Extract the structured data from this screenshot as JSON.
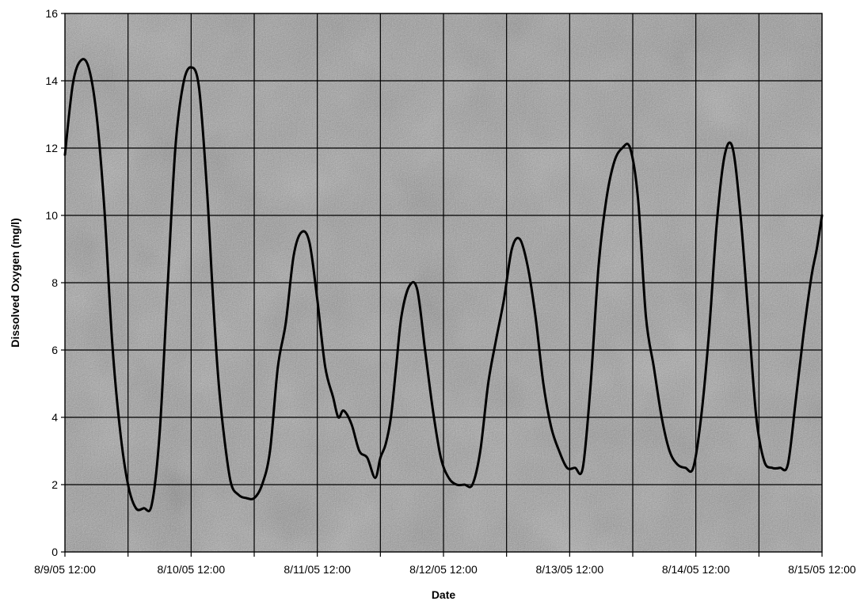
{
  "chart_data": {
    "type": "line",
    "title": "",
    "xlabel": "Date",
    "ylabel": "Dissolved Oxygen (mg/l)",
    "ylim": [
      0,
      16
    ],
    "yticks": [
      0,
      2,
      4,
      6,
      8,
      10,
      12,
      14,
      16
    ],
    "xlim": [
      "2005-08-09 12:00",
      "2005-08-15 12:00"
    ],
    "xtick_labels": [
      "8/9/05 12:00",
      "8/10/05 12:00",
      "8/11/05 12:00",
      "8/12/05 12:00",
      "8/13/05 12:00",
      "8/14/05 12:00",
      "8/15/05 12:00"
    ],
    "grid": true,
    "grid_interval_hours": 12,
    "background": "textured gray",
    "line_color": "#000000",
    "series": [
      {
        "x": [
          "2005-08-09 12:00",
          "2005-08-09 13:30",
          "2005-08-09 15:00",
          "2005-08-09 16:30",
          "2005-08-09 18:00",
          "2005-08-09 19:30",
          "2005-08-09 21:00",
          "2005-08-09 22:30",
          "2005-08-10 00:00",
          "2005-08-10 01:30",
          "2005-08-10 03:00",
          "2005-08-10 04:30",
          "2005-08-10 06:00",
          "2005-08-10 07:30",
          "2005-08-10 09:00",
          "2005-08-10 10:30",
          "2005-08-10 12:00",
          "2005-08-10 13:30",
          "2005-08-10 15:00",
          "2005-08-10 16:00",
          "2005-08-10 17:00",
          "2005-08-10 18:00",
          "2005-08-10 19:30",
          "2005-08-10 21:00",
          "2005-08-10 22:30",
          "2005-08-11 00:00",
          "2005-08-11 01:30",
          "2005-08-11 03:00",
          "2005-08-11 04:30",
          "2005-08-11 06:00",
          "2005-08-11 07:30",
          "2005-08-11 09:00",
          "2005-08-11 10:30",
          "2005-08-11 12:00",
          "2005-08-11 13:30",
          "2005-08-11 15:00",
          "2005-08-11 16:00",
          "2005-08-11 17:00",
          "2005-08-11 18:30",
          "2005-08-11 20:00",
          "2005-08-11 21:30",
          "2005-08-11 23:00",
          "2005-08-12 00:00",
          "2005-08-12 01:00",
          "2005-08-12 02:00",
          "2005-08-12 03:00",
          "2005-08-12 04:00",
          "2005-08-12 05:30",
          "2005-08-12 07:00",
          "2005-08-12 08:30",
          "2005-08-12 10:00",
          "2005-08-12 11:30",
          "2005-08-12 13:00",
          "2005-08-12 14:30",
          "2005-08-12 16:00",
          "2005-08-12 17:30",
          "2005-08-12 19:00",
          "2005-08-12 20:30",
          "2005-08-12 22:00",
          "2005-08-12 23:30",
          "2005-08-13 01:00",
          "2005-08-13 02:30",
          "2005-08-13 04:00",
          "2005-08-13 05:30",
          "2005-08-13 07:00",
          "2005-08-13 08:30",
          "2005-08-13 10:00",
          "2005-08-13 11:30",
          "2005-08-13 13:00",
          "2005-08-13 14:30",
          "2005-08-13 16:00",
          "2005-08-13 17:30",
          "2005-08-13 19:00",
          "2005-08-13 20:30",
          "2005-08-13 22:00",
          "2005-08-13 23:30",
          "2005-08-14 01:00",
          "2005-08-14 02:30",
          "2005-08-14 04:00",
          "2005-08-14 05:30",
          "2005-08-14 07:00",
          "2005-08-14 08:30",
          "2005-08-14 10:00",
          "2005-08-14 11:30",
          "2005-08-14 13:00",
          "2005-08-14 14:30",
          "2005-08-14 16:00",
          "2005-08-14 17:30",
          "2005-08-14 19:00",
          "2005-08-14 20:30",
          "2005-08-14 22:00",
          "2005-08-14 23:30",
          "2005-08-15 01:00",
          "2005-08-15 02:30",
          "2005-08-15 04:00",
          "2005-08-15 05:30",
          "2005-08-15 07:00",
          "2005-08-15 08:30",
          "2005-08-15 10:00",
          "2005-08-15 11:00",
          "2005-08-15 12:00"
        ],
        "values": [
          11.8,
          13.9,
          14.6,
          14.4,
          13.0,
          10.2,
          6.2,
          3.6,
          2.0,
          1.3,
          1.3,
          1.4,
          3.5,
          7.8,
          12.0,
          13.9,
          14.4,
          13.8,
          10.8,
          8.0,
          5.5,
          3.8,
          2.1,
          1.7,
          1.6,
          1.6,
          2.0,
          3.0,
          5.5,
          6.8,
          8.8,
          9.5,
          9.2,
          7.5,
          5.5,
          4.6,
          4.0,
          4.2,
          3.8,
          3.0,
          2.8,
          2.2,
          2.8,
          3.2,
          4.0,
          5.5,
          7.0,
          7.9,
          7.8,
          6.0,
          4.2,
          2.8,
          2.2,
          2.0,
          2.0,
          2.0,
          3.0,
          5.0,
          6.3,
          7.5,
          9.0,
          9.3,
          8.5,
          7.0,
          5.0,
          3.7,
          3.0,
          2.5,
          2.5,
          2.5,
          5.0,
          8.5,
          10.5,
          11.6,
          12.0,
          12.0,
          10.5,
          7.0,
          5.5,
          4.0,
          3.0,
          2.6,
          2.5,
          2.5,
          4.0,
          6.5,
          9.8,
          11.8,
          12.0,
          10.0,
          7.0,
          4.0,
          2.7,
          2.5,
          2.5,
          2.6,
          4.5,
          6.5,
          8.2,
          9.0,
          10.0
        ]
      }
    ]
  }
}
